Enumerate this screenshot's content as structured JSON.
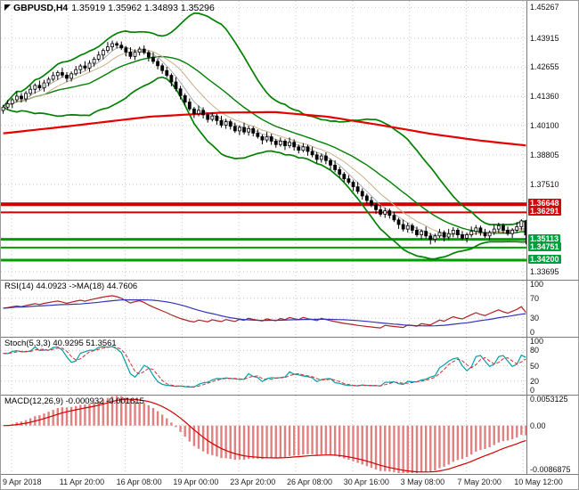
{
  "title": {
    "symbol": "GBPUSD,H4",
    "ohlc": "1.35919 1.35962 1.34893 1.35296"
  },
  "chart_data": {
    "type": "candlestick",
    "symbol": "GBPUSD",
    "timeframe": "H4",
    "last_bar": {
      "open": 1.35919,
      "high": 1.35962,
      "low": 1.34893,
      "close": 1.35296
    },
    "x_labels": [
      "9 Apr 2018",
      "11 Apr 20:00",
      "16 Apr 08:00",
      "19 Apr 00:00",
      "23 Apr 20:00",
      "26 Apr 08:00",
      "30 Apr 16:00",
      "3 May 08:00",
      "7 May 20:00",
      "10 May 12:00"
    ],
    "price_axis": {
      "scale_min": 1.3338,
      "scale_max": 1.4555,
      "ticks": [
        1.45267,
        1.43915,
        1.42655,
        1.4136,
        1.401,
        1.38805,
        1.3751,
        1.33695
      ]
    },
    "levels": [
      {
        "type": "resistance",
        "price": 1.36648,
        "label": "1.36648",
        "weight": 4
      },
      {
        "type": "resistance",
        "price": 1.36291,
        "label": "1.36291",
        "weight": 2
      },
      {
        "type": "support",
        "price": 1.35113,
        "label": "1.35113",
        "weight": 3
      },
      {
        "type": "support",
        "price": 1.34751,
        "label": "1.34751",
        "weight": 2
      },
      {
        "type": "support",
        "price": 1.342,
        "label": "1.34200",
        "weight": 3
      }
    ],
    "bollinger": {
      "period": 20,
      "mult": 2.5
    },
    "fast_mas": [
      {
        "period": 5,
        "color": "#aaaaaa"
      },
      {
        "period": 10,
        "color": "#c9b08a"
      }
    ],
    "trend_ma_points": [
      [
        0,
        1.3975
      ],
      [
        0.12,
        1.4005
      ],
      [
        0.28,
        1.4048
      ],
      [
        0.42,
        1.4066
      ],
      [
        0.52,
        1.4068
      ],
      [
        0.62,
        1.4048
      ],
      [
        0.72,
        1.4012
      ],
      [
        0.82,
        1.3972
      ],
      [
        0.91,
        1.3944
      ],
      [
        1,
        1.3922
      ]
    ],
    "candles": [
      [
        1.4075,
        1.41,
        1.4061,
        1.409
      ],
      [
        1.409,
        1.4121,
        1.4081,
        1.4105
      ],
      [
        1.4105,
        1.4131,
        1.4086,
        1.4122
      ],
      [
        1.4122,
        1.4159,
        1.4111,
        1.4138
      ],
      [
        1.4138,
        1.4151,
        1.411,
        1.4126
      ],
      [
        1.4126,
        1.416,
        1.4112,
        1.415
      ],
      [
        1.415,
        1.4184,
        1.4141,
        1.4168
      ],
      [
        1.4168,
        1.4194,
        1.4149,
        1.4185
      ],
      [
        1.4185,
        1.4206,
        1.4163,
        1.4174
      ],
      [
        1.4174,
        1.4209,
        1.4158,
        1.4196
      ],
      [
        1.4196,
        1.4222,
        1.4182,
        1.4212
      ],
      [
        1.4212,
        1.4244,
        1.4203,
        1.4228
      ],
      [
        1.4228,
        1.425,
        1.4209,
        1.4241
      ],
      [
        1.4241,
        1.4262,
        1.4219,
        1.423
      ],
      [
        1.423,
        1.4243,
        1.42,
        1.4216
      ],
      [
        1.4216,
        1.4246,
        1.4202,
        1.4236
      ],
      [
        1.4236,
        1.427,
        1.4227,
        1.4254
      ],
      [
        1.4254,
        1.4279,
        1.4235,
        1.427
      ],
      [
        1.427,
        1.4291,
        1.425,
        1.4261
      ],
      [
        1.4261,
        1.4295,
        1.4245,
        1.4282
      ],
      [
        1.4282,
        1.431,
        1.4268,
        1.43
      ],
      [
        1.43,
        1.4334,
        1.4291,
        1.4318
      ],
      [
        1.4318,
        1.4347,
        1.4299,
        1.4338
      ],
      [
        1.4338,
        1.4375,
        1.4327,
        1.4354
      ],
      [
        1.4354,
        1.4381,
        1.4338,
        1.4368
      ],
      [
        1.4368,
        1.4378,
        1.4347,
        1.4361
      ],
      [
        1.4361,
        1.4377,
        1.434,
        1.4349
      ],
      [
        1.4349,
        1.4358,
        1.4312,
        1.4331
      ],
      [
        1.4331,
        1.4352,
        1.4301,
        1.4312
      ],
      [
        1.4312,
        1.4343,
        1.4296,
        1.433
      ],
      [
        1.433,
        1.4354,
        1.4316,
        1.4344
      ],
      [
        1.4344,
        1.436,
        1.432,
        1.4329
      ],
      [
        1.4329,
        1.4338,
        1.429,
        1.4309
      ],
      [
        1.4309,
        1.433,
        1.4279,
        1.429
      ],
      [
        1.429,
        1.4303,
        1.4255,
        1.4271
      ],
      [
        1.4271,
        1.4281,
        1.4236,
        1.425
      ],
      [
        1.425,
        1.4266,
        1.422,
        1.4229
      ],
      [
        1.4229,
        1.4238,
        1.4181,
        1.42
      ],
      [
        1.42,
        1.4221,
        1.4159,
        1.417
      ],
      [
        1.417,
        1.4183,
        1.4124,
        1.414
      ],
      [
        1.414,
        1.415,
        1.4098,
        1.4112
      ],
      [
        1.4112,
        1.4128,
        1.4073,
        1.4082
      ],
      [
        1.4082,
        1.4091,
        1.4042,
        1.4061
      ],
      [
        1.4061,
        1.4097,
        1.405,
        1.4076
      ],
      [
        1.4076,
        1.4089,
        1.404,
        1.4056
      ],
      [
        1.4056,
        1.4066,
        1.4022,
        1.4036
      ],
      [
        1.4036,
        1.4067,
        1.4027,
        1.4051
      ],
      [
        1.4051,
        1.406,
        1.4012,
        1.4031
      ],
      [
        1.4031,
        1.4052,
        1.4,
        1.4011
      ],
      [
        1.4011,
        1.4039,
        1.3995,
        1.4026
      ],
      [
        1.4026,
        1.4036,
        1.3992,
        1.4006
      ],
      [
        1.4006,
        1.4022,
        1.3977,
        1.3986
      ],
      [
        1.3986,
        1.401,
        1.3967,
        1.4001
      ],
      [
        1.4001,
        1.4022,
        1.397,
        1.3981
      ],
      [
        1.3981,
        1.4009,
        1.3965,
        1.3996
      ],
      [
        1.3996,
        1.4006,
        1.3962,
        1.3976
      ],
      [
        1.3976,
        1.3992,
        1.3952,
        1.3961
      ],
      [
        1.3961,
        1.397,
        1.3927,
        1.3946
      ],
      [
        1.3946,
        1.3981,
        1.3935,
        1.396
      ],
      [
        1.396,
        1.3973,
        1.3925,
        1.3941
      ],
      [
        1.3941,
        1.3951,
        1.3912,
        1.3926
      ],
      [
        1.3926,
        1.3957,
        1.3917,
        1.3941
      ],
      [
        1.3941,
        1.395,
        1.3902,
        1.3921
      ],
      [
        1.3921,
        1.3957,
        1.391,
        1.3936
      ],
      [
        1.3936,
        1.3949,
        1.39,
        1.3916
      ],
      [
        1.3916,
        1.3926,
        1.3887,
        1.3901
      ],
      [
        1.3901,
        1.3932,
        1.3892,
        1.3916
      ],
      [
        1.3916,
        1.3925,
        1.3877,
        1.3896
      ],
      [
        1.3896,
        1.3917,
        1.387,
        1.3881
      ],
      [
        1.3881,
        1.3894,
        1.3845,
        1.3861
      ],
      [
        1.3861,
        1.3886,
        1.3847,
        1.3876
      ],
      [
        1.3876,
        1.3892,
        1.384,
        1.3856
      ],
      [
        1.3856,
        1.3865,
        1.3817,
        1.3836
      ],
      [
        1.3836,
        1.3857,
        1.3805,
        1.3816
      ],
      [
        1.3816,
        1.3829,
        1.378,
        1.3796
      ],
      [
        1.3796,
        1.3806,
        1.3762,
        1.3776
      ],
      [
        1.3776,
        1.3792,
        1.3752,
        1.3761
      ],
      [
        1.3761,
        1.377,
        1.3722,
        1.3741
      ],
      [
        1.3741,
        1.3762,
        1.371,
        1.3721
      ],
      [
        1.3721,
        1.3734,
        1.3685,
        1.3701
      ],
      [
        1.3701,
        1.3711,
        1.3667,
        1.3681
      ],
      [
        1.3681,
        1.3697,
        1.3652,
        1.3661
      ],
      [
        1.3661,
        1.367,
        1.3622,
        1.3641
      ],
      [
        1.3641,
        1.3662,
        1.361,
        1.3621
      ],
      [
        1.3621,
        1.3649,
        1.3605,
        1.3636
      ],
      [
        1.3636,
        1.3646,
        1.3602,
        1.3616
      ],
      [
        1.3616,
        1.3632,
        1.3587,
        1.3596
      ],
      [
        1.3596,
        1.3605,
        1.3557,
        1.3576
      ],
      [
        1.3576,
        1.3597,
        1.3545,
        1.3556
      ],
      [
        1.3556,
        1.3584,
        1.354,
        1.3571
      ],
      [
        1.3571,
        1.3581,
        1.3537,
        1.3551
      ],
      [
        1.3551,
        1.3567,
        1.3522,
        1.3531
      ],
      [
        1.3531,
        1.3555,
        1.3512,
        1.3546
      ],
      [
        1.3546,
        1.3567,
        1.3515,
        1.3526
      ],
      [
        1.3526,
        1.3539,
        1.3489,
        1.3511
      ],
      [
        1.3511,
        1.3536,
        1.3497,
        1.3526
      ],
      [
        1.3526,
        1.3557,
        1.3517,
        1.3541
      ],
      [
        1.3541,
        1.355,
        1.3502,
        1.3521
      ],
      [
        1.3521,
        1.3557,
        1.351,
        1.3536
      ],
      [
        1.3536,
        1.3564,
        1.352,
        1.3551
      ],
      [
        1.3551,
        1.3561,
        1.3517,
        1.3531
      ],
      [
        1.3531,
        1.3547,
        1.3507,
        1.3516
      ],
      [
        1.3516,
        1.354,
        1.3497,
        1.3531
      ],
      [
        1.3531,
        1.3567,
        1.352,
        1.3546
      ],
      [
        1.3546,
        1.3574,
        1.353,
        1.3561
      ],
      [
        1.3561,
        1.3571,
        1.3527,
        1.3541
      ],
      [
        1.3541,
        1.3557,
        1.3517,
        1.3526
      ],
      [
        1.3526,
        1.355,
        1.3507,
        1.3541
      ],
      [
        1.3541,
        1.3577,
        1.353,
        1.3556
      ],
      [
        1.3556,
        1.3584,
        1.354,
        1.3571
      ],
      [
        1.3571,
        1.3581,
        1.3537,
        1.3551
      ],
      [
        1.3551,
        1.3567,
        1.3527,
        1.3536
      ],
      [
        1.3536,
        1.356,
        1.3517,
        1.3551
      ],
      [
        1.3551,
        1.3587,
        1.354,
        1.3566
      ],
      [
        1.3566,
        1.3599,
        1.355,
        1.3592
      ],
      [
        1.3592,
        1.3596,
        1.3489,
        1.353
      ]
    ],
    "indicators": {
      "rsi": {
        "label": "RSI(14) 44.0923 ->MA(18) 44.7606",
        "period": 14,
        "ma_period": 18,
        "value": 44.0923,
        "ma_value": 44.7606,
        "ticks": [
          100,
          70,
          30,
          0
        ],
        "lines": [
          70,
          30
        ]
      },
      "stoch": {
        "label": "Stoch(5,3,3) 40.9295 51.3561",
        "k_period": 5,
        "slowing": 3,
        "d_period": 3,
        "k_value": 40.9295,
        "d_value": 51.3561,
        "ticks": [
          100,
          80,
          50,
          20,
          0
        ],
        "lines": [
          80,
          50,
          20
        ]
      },
      "macd": {
        "label": "MACD(12,26,9) -0.000932 -0.001615",
        "fast": 12,
        "slow": 26,
        "signal": 9,
        "macd_value": -0.000932,
        "signal_value": -0.001615,
        "scale_max": 0.0053125,
        "scale_min": -0.0086875,
        "ticks": [
          {
            "value": 0.0053125,
            "label": "0.0053125"
          },
          {
            "value": 0,
            "label": "0.00"
          },
          {
            "value": -0.0086875,
            "label": "-0.0086875"
          }
        ]
      }
    },
    "colors": {
      "grid": "#c8c8c8",
      "bands": "#008000",
      "trend_ma": "#e60000",
      "level_res": "#cc0000",
      "level_sup": "#00a000",
      "candle_up": "#ffffff",
      "candle_down": "#000000",
      "candle_outline": "#000000",
      "rsi": "#b22222",
      "rsi_ma": "#3434bb",
      "stoch_k": "#00a0a8",
      "stoch_d": "#cc3333",
      "macd_hist": "#e08080",
      "macd_signal": "#d00000"
    }
  }
}
